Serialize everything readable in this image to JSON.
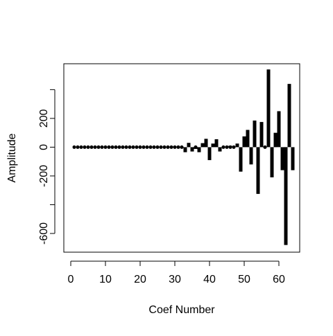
{
  "chart_data": {
    "type": "bar",
    "title": "",
    "xlabel": "Coef Number",
    "ylabel": "Amplitude",
    "xlim": [
      -2,
      66
    ],
    "ylim": [
      -730,
      580
    ],
    "xticks": [
      0,
      10,
      20,
      30,
      40,
      50,
      60
    ],
    "xtick_labels": [
      "0",
      "10",
      "20",
      "30",
      "40",
      "50",
      "60"
    ],
    "yticks": [
      -600,
      -400,
      -200,
      0,
      200,
      400
    ],
    "ytick_labels": [
      "-600",
      "",
      "-200",
      "0",
      "200",
      ""
    ],
    "grid": false,
    "x": [
      1,
      2,
      3,
      4,
      5,
      6,
      7,
      8,
      9,
      10,
      11,
      12,
      13,
      14,
      15,
      16,
      17,
      18,
      19,
      20,
      21,
      22,
      23,
      24,
      25,
      26,
      27,
      28,
      29,
      30,
      31,
      32,
      33,
      34,
      35,
      36,
      37,
      38,
      39,
      40,
      41,
      42,
      43,
      44,
      45,
      46,
      47,
      48,
      49,
      50,
      51,
      52,
      53,
      54,
      55,
      56,
      57,
      58,
      59,
      60,
      61,
      62,
      63,
      64
    ],
    "values": [
      0,
      0,
      0,
      0,
      0,
      0,
      0,
      4,
      0,
      0,
      3,
      0,
      -4,
      0,
      0,
      0,
      2,
      0,
      0,
      0,
      0,
      0,
      0,
      4,
      0,
      0,
      2,
      0,
      3,
      5,
      0,
      -5,
      -35,
      30,
      -30,
      -12,
      -35,
      28,
      58,
      -90,
      25,
      55,
      -30,
      0,
      5,
      10,
      0,
      25,
      -170,
      75,
      120,
      -120,
      185,
      -325,
      175,
      -5,
      540,
      -210,
      100,
      250,
      -160,
      -680,
      440,
      -160
    ],
    "color": "#000000"
  }
}
